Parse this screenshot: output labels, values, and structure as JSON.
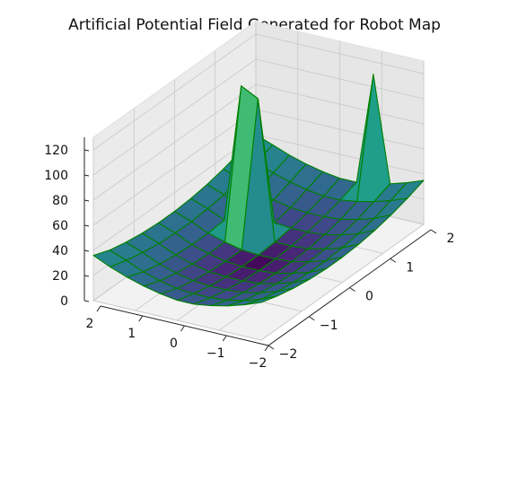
{
  "chart_data": {
    "type": "surface3d",
    "title": "Artificial Potential Field Generated for Robot Map",
    "colormap": "viridis",
    "edge_color": "#008000",
    "x_ticks": [
      "2",
      "1",
      "0",
      "−1",
      "−2"
    ],
    "y_ticks": [
      "2",
      "1",
      "0",
      "−1",
      "−2"
    ],
    "z_ticks": [
      "0",
      "20",
      "40",
      "60",
      "80",
      "100",
      "120"
    ],
    "xlim": [
      -2,
      2
    ],
    "ylim": [
      -2,
      2
    ],
    "zlim": [
      0,
      130
    ],
    "grid": true,
    "grid_x": [
      -2.0,
      -1.6,
      -1.2,
      -0.8,
      -0.4,
      0.0,
      0.4,
      0.8,
      1.2,
      1.6,
      2.0
    ],
    "grid_y": [
      -2.0,
      -1.6,
      -1.2,
      -0.8,
      -0.4,
      0.0,
      0.4,
      0.8,
      1.2,
      1.6,
      2.0
    ],
    "z_values": [
      [
        30,
        25,
        21,
        18,
        16,
        16,
        18,
        21,
        25,
        30,
        36
      ],
      [
        26,
        20,
        16,
        13,
        12,
        12,
        13,
        16,
        20,
        26,
        31
      ],
      [
        23,
        17,
        13,
        10,
        9,
        9,
        10,
        13,
        17,
        23,
        28
      ],
      [
        21,
        15,
        11,
        8,
        7,
        7,
        8,
        11,
        15,
        21,
        26
      ],
      [
        20,
        14,
        10,
        7,
        6,
        6,
        7,
        10,
        14,
        20,
        25
      ],
      [
        20,
        14,
        10,
        7,
        6,
        6,
        7,
        10,
        14,
        20,
        25
      ],
      [
        21,
        15,
        11,
        8,
        7,
        7,
        118,
        125,
        15,
        21,
        26
      ],
      [
        23,
        17,
        13,
        10,
        9,
        9,
        10,
        13,
        17,
        23,
        28
      ],
      [
        26,
        20,
        16,
        13,
        12,
        12,
        13,
        16,
        20,
        26,
        31
      ],
      [
        30,
        25,
        21,
        18,
        16,
        16,
        18,
        21,
        25,
        30,
        35
      ],
      [
        35,
        30,
        26,
        110,
        21,
        21,
        23,
        26,
        30,
        35,
        40
      ]
    ]
  }
}
